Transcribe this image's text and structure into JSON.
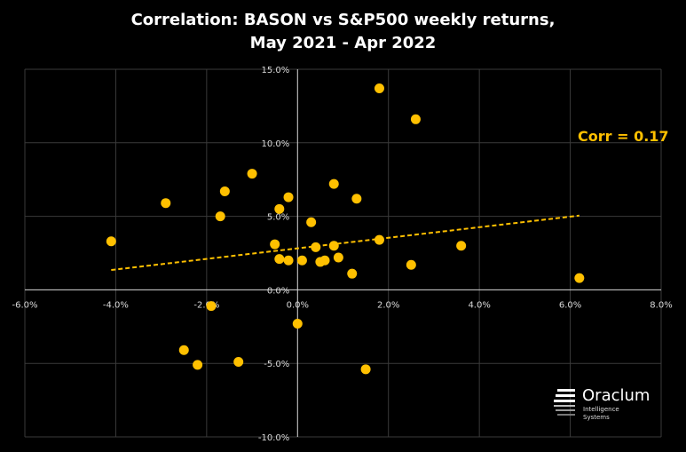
{
  "chart_data": {
    "type": "scatter",
    "title_lines": [
      "Correlation:  BASON vs S&P500 weekly returns,",
      "May 2021 - Apr 2022"
    ],
    "xlabel": "",
    "ylabel": "",
    "xlim": [
      -0.06,
      0.08
    ],
    "ylim": [
      -0.1,
      0.15
    ],
    "x_ticks": [
      -0.06,
      -0.04,
      -0.02,
      0.0,
      0.02,
      0.04,
      0.06,
      0.08
    ],
    "x_tick_labels": [
      "-6.0%",
      "-4.0%",
      "-2.0%",
      "0.0%",
      "2.0%",
      "4.0%",
      "6.0%",
      "8.0%"
    ],
    "y_ticks": [
      -0.1,
      -0.05,
      0.0,
      0.05,
      0.1,
      0.15
    ],
    "y_tick_labels": [
      "-10.0%",
      "-5.0%",
      "0.0%",
      "5.0%",
      "10.0%",
      "15.0%"
    ],
    "grid": true,
    "point_color": "#FFC000",
    "trendline": {
      "x": [
        -0.041,
        0.062
      ],
      "y": [
        0.0135,
        0.0505
      ],
      "style": "dashed",
      "color": "#FFC000"
    },
    "annotation": "Corr = 0.17",
    "points": [
      {
        "x": 0.018,
        "y": 0.137
      },
      {
        "x": 0.026,
        "y": 0.116
      },
      {
        "x": -0.01,
        "y": 0.079
      },
      {
        "x": 0.008,
        "y": 0.072
      },
      {
        "x": -0.016,
        "y": 0.067
      },
      {
        "x": -0.002,
        "y": 0.063
      },
      {
        "x": 0.013,
        "y": 0.062
      },
      {
        "x": -0.029,
        "y": 0.059
      },
      {
        "x": -0.004,
        "y": 0.055
      },
      {
        "x": -0.017,
        "y": 0.05
      },
      {
        "x": 0.003,
        "y": 0.046
      },
      {
        "x": -0.041,
        "y": 0.033
      },
      {
        "x": -0.005,
        "y": 0.031
      },
      {
        "x": 0.018,
        "y": 0.034
      },
      {
        "x": 0.036,
        "y": 0.03
      },
      {
        "x": 0.004,
        "y": 0.029
      },
      {
        "x": 0.008,
        "y": 0.03
      },
      {
        "x": -0.004,
        "y": 0.021
      },
      {
        "x": -0.002,
        "y": 0.02
      },
      {
        "x": 0.001,
        "y": 0.02
      },
      {
        "x": 0.005,
        "y": 0.019
      },
      {
        "x": 0.006,
        "y": 0.02
      },
      {
        "x": 0.009,
        "y": 0.022
      },
      {
        "x": 0.012,
        "y": 0.011
      },
      {
        "x": 0.025,
        "y": 0.017
      },
      {
        "x": 0.062,
        "y": 0.008
      },
      {
        "x": -0.019,
        "y": -0.011
      },
      {
        "x": 0.0,
        "y": -0.023
      },
      {
        "x": -0.025,
        "y": -0.041
      },
      {
        "x": -0.022,
        "y": -0.051
      },
      {
        "x": -0.013,
        "y": -0.049
      },
      {
        "x": 0.015,
        "y": -0.054
      }
    ]
  },
  "logo": {
    "name": "Oraclum",
    "tagline_1": "Intelligence",
    "tagline_2": "Systems"
  }
}
